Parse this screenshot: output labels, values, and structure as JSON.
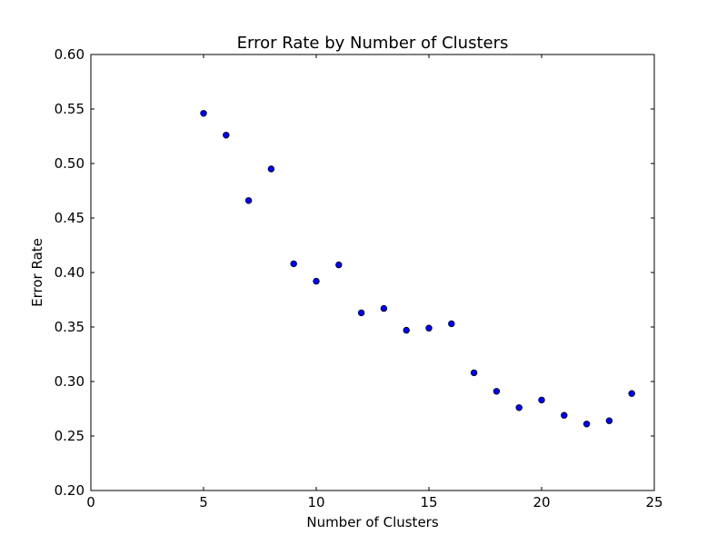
{
  "chart_data": {
    "type": "scatter",
    "title": "Error Rate by Number of Clusters",
    "xlabel": "Number of Clusters",
    "ylabel": "Error Rate",
    "xlim": [
      0,
      25
    ],
    "ylim": [
      0.2,
      0.6
    ],
    "xticks": [
      "0",
      "5",
      "10",
      "15",
      "20",
      "25"
    ],
    "yticks": [
      "0.20",
      "0.25",
      "0.30",
      "0.35",
      "0.40",
      "0.45",
      "0.50",
      "0.55",
      "0.60"
    ],
    "grid": false,
    "legend": null,
    "marker_color": "#0000ff",
    "marker_edge_color": "#000000",
    "x": [
      5,
      6,
      7,
      8,
      9,
      10,
      11,
      12,
      13,
      14,
      15,
      16,
      17,
      18,
      19,
      20,
      21,
      22,
      23,
      24
    ],
    "y": [
      0.546,
      0.526,
      0.466,
      0.495,
      0.408,
      0.392,
      0.407,
      0.363,
      0.367,
      0.347,
      0.349,
      0.353,
      0.308,
      0.291,
      0.276,
      0.283,
      0.269,
      0.261,
      0.264,
      0.289
    ]
  }
}
